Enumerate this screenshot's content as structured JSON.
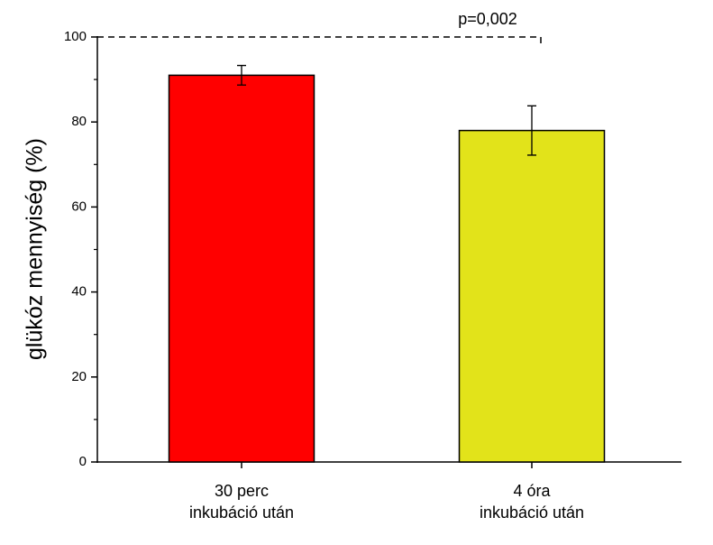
{
  "chart_data": {
    "type": "bar",
    "y_label": "glükóz mennyiség (%)",
    "annotation": "p=0,002",
    "categories": [
      [
        "30 perc",
        "inkubáció után"
      ],
      [
        "4 óra",
        "inkubáció után"
      ]
    ],
    "values": [
      91,
      78
    ],
    "errors": [
      2.3,
      5.8
    ],
    "colors": [
      "#ff0000",
      "#e2e31a"
    ],
    "ylim": [
      0,
      100
    ],
    "yticks": [
      0,
      20,
      40,
      60,
      80,
      100
    ],
    "minor_yticks": [
      10,
      30,
      50,
      70,
      90
    ],
    "grid": false
  }
}
